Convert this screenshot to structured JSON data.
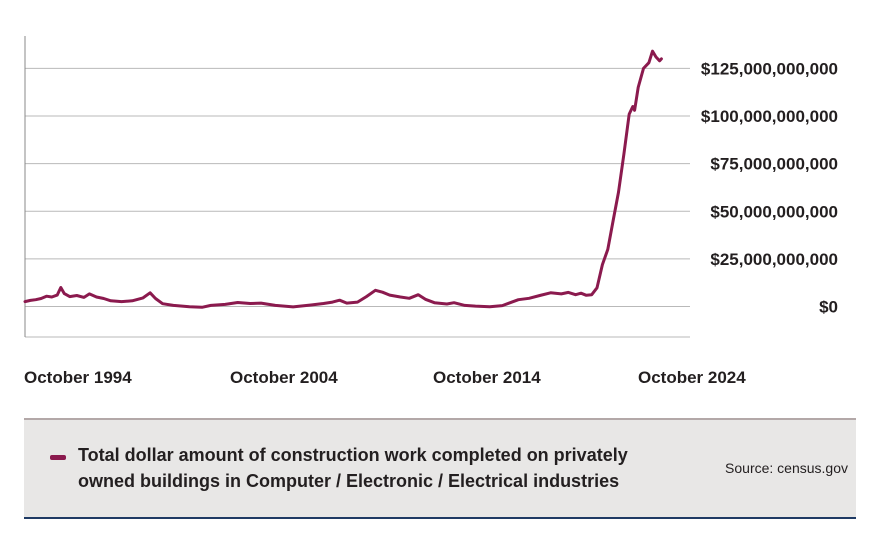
{
  "chart_data": {
    "type": "line",
    "title": "",
    "xlabel": "",
    "ylabel": "",
    "x_ticks": [
      "October 1994",
      "October 2004",
      "October 2014",
      "October 2024"
    ],
    "y_ticks": [
      "$125,000,000,000",
      "$100,000,000,000",
      "$75,000,000,000",
      "$50,000,000,000",
      "$25,000,000,000",
      "$0"
    ],
    "y_tick_values": [
      125000000000,
      100000000000,
      75000000000,
      50000000000,
      25000000000,
      0
    ],
    "ylim": [
      -16000000000,
      142000000000
    ],
    "xlim": [
      "1993-10",
      "2024-10"
    ],
    "grid": true,
    "series": [
      {
        "name": "Total dollar amount of construction work completed on privately owned buildings in Computer / Electronic / Electrical industries",
        "color": "#8b1a4e",
        "points": [
          [
            "1993-10",
            2600000000
          ],
          [
            "1994-01",
            3200000000
          ],
          [
            "1994-04",
            3600000000
          ],
          [
            "1994-07",
            4200000000
          ],
          [
            "1994-10",
            5400000000
          ],
          [
            "1995-01",
            5000000000
          ],
          [
            "1995-04",
            6000000000
          ],
          [
            "1995-06",
            10000000000
          ],
          [
            "1995-08",
            6800000000
          ],
          [
            "1995-11",
            5200000000
          ],
          [
            "1996-03",
            5800000000
          ],
          [
            "1996-07",
            4800000000
          ],
          [
            "1996-10",
            6600000000
          ],
          [
            "1997-02",
            5000000000
          ],
          [
            "1997-06",
            4200000000
          ],
          [
            "1997-10",
            3000000000
          ],
          [
            "1998-04",
            2600000000
          ],
          [
            "1998-10",
            3000000000
          ],
          [
            "1999-04",
            4500000000
          ],
          [
            "1999-08",
            7200000000
          ],
          [
            "1999-11",
            4200000000
          ],
          [
            "2000-03",
            1500000000
          ],
          [
            "2000-09",
            600000000
          ],
          [
            "2001-06",
            -100000000
          ],
          [
            "2002-01",
            -400000000
          ],
          [
            "2002-06",
            600000000
          ],
          [
            "2003-02",
            1100000000
          ],
          [
            "2003-09",
            2100000000
          ],
          [
            "2004-04",
            1600000000
          ],
          [
            "2004-10",
            1800000000
          ],
          [
            "2005-06",
            600000000
          ],
          [
            "2006-04",
            -200000000
          ],
          [
            "2007-02",
            800000000
          ],
          [
            "2007-09",
            1600000000
          ],
          [
            "2008-02",
            2300000000
          ],
          [
            "2008-06",
            3300000000
          ],
          [
            "2008-10",
            1800000000
          ],
          [
            "2009-04",
            2300000000
          ],
          [
            "2009-09",
            5200000000
          ],
          [
            "2010-02",
            8500000000
          ],
          [
            "2010-06",
            7500000000
          ],
          [
            "2010-10",
            6000000000
          ],
          [
            "2011-04",
            5000000000
          ],
          [
            "2011-09",
            4300000000
          ],
          [
            "2012-02",
            6200000000
          ],
          [
            "2012-06",
            3800000000
          ],
          [
            "2012-11",
            2000000000
          ],
          [
            "2013-06",
            1300000000
          ],
          [
            "2013-10",
            2000000000
          ],
          [
            "2014-04",
            600000000
          ],
          [
            "2014-10",
            200000000
          ],
          [
            "2015-06",
            -100000000
          ],
          [
            "2016-01",
            500000000
          ],
          [
            "2016-06",
            2200000000
          ],
          [
            "2016-10",
            3600000000
          ],
          [
            "2017-04",
            4300000000
          ],
          [
            "2017-10",
            5800000000
          ],
          [
            "2018-04",
            7200000000
          ],
          [
            "2018-10",
            6600000000
          ],
          [
            "2019-02",
            7400000000
          ],
          [
            "2019-06",
            6200000000
          ],
          [
            "2019-09",
            7000000000
          ],
          [
            "2019-12",
            5900000000
          ],
          [
            "2020-03",
            6200000000
          ],
          [
            "2020-06",
            9800000000
          ],
          [
            "2020-09",
            22000000000
          ],
          [
            "2020-12",
            30000000000
          ],
          [
            "2021-03",
            45000000000
          ],
          [
            "2021-06",
            60000000000
          ],
          [
            "2021-09",
            80000000000
          ],
          [
            "2021-12",
            101000000000
          ],
          [
            "2022-02",
            105000000000
          ],
          [
            "2022-03",
            103000000000
          ],
          [
            "2022-05",
            115000000000
          ],
          [
            "2022-08",
            125000000000
          ],
          [
            "2022-11",
            128000000000
          ],
          [
            "2023-01",
            134000000000
          ],
          [
            "2023-03",
            131000000000
          ],
          [
            "2023-05",
            129000000000
          ],
          [
            "2023-06",
            130000000000
          ]
        ]
      }
    ]
  },
  "legend": {
    "line1": "Total dollar amount of construction work completed on privately",
    "line2": "owned buildings in Computer / Electronic / Electrical industries",
    "color": "#8b1a4e"
  },
  "source": "Source: census.gov"
}
